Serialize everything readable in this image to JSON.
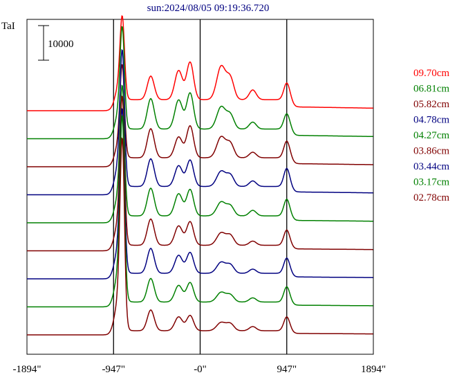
{
  "chart_data": {
    "type": "line",
    "title": "sun:2024/08/05 09:19:36.720",
    "ylabel": "TaI",
    "scale_bar_label": "10000",
    "xlim": [
      -1894,
      1894
    ],
    "x_ticks": [
      {
        "value": -1894,
        "label": "-1894\""
      },
      {
        "value": -947,
        "label": "-947\""
      },
      {
        "value": 0,
        "label": "-0\""
      },
      {
        "value": 947,
        "label": "947\""
      },
      {
        "value": 1894,
        "label": "1894\""
      }
    ],
    "vertical_markers": [
      -947,
      0,
      947
    ],
    "layout_note": "stacked traces with constant vertical offset",
    "series": [
      {
        "name": "09.70cm",
        "color": "#ff0000",
        "base": 16,
        "pk": {
          "main": 108,
          "a": 34,
          "b": 42,
          "c": 54,
          "d": 48,
          "e": 30,
          "f": 14,
          "g": 24
        }
      },
      {
        "name": "06.81cm",
        "color": "#008000",
        "base": 14,
        "pk": {
          "main": 132,
          "a": 44,
          "b": 42,
          "c": 52,
          "d": 32,
          "e": 20,
          "f": 10,
          "g": 22
        }
      },
      {
        "name": "05.82cm",
        "color": "#800000",
        "base": 13,
        "pk": {
          "main": 120,
          "a": 42,
          "b": 30,
          "c": 46,
          "d": 30,
          "e": 20,
          "f": 8,
          "g": 24
        }
      },
      {
        "name": "04.78cm",
        "color": "#000080",
        "base": 12,
        "pk": {
          "main": 176,
          "a": 40,
          "b": 30,
          "c": 38,
          "d": 22,
          "e": 16,
          "f": 8,
          "g": 26
        }
      },
      {
        "name": "04.27cm",
        "color": "#008000",
        "base": 10,
        "pk": {
          "main": 168,
          "a": 40,
          "b": 32,
          "c": 38,
          "d": 20,
          "e": 14,
          "f": 8,
          "g": 24
        }
      },
      {
        "name": "03.86cm",
        "color": "#800000",
        "base": 8,
        "pk": {
          "main": 192,
          "a": 38,
          "b": 28,
          "c": 34,
          "d": 18,
          "e": 14,
          "f": 6,
          "g": 22
        }
      },
      {
        "name": "03.44cm",
        "color": "#000080",
        "base": 8,
        "pk": {
          "main": 212,
          "a": 36,
          "b": 26,
          "c": 30,
          "d": 16,
          "e": 12,
          "f": 6,
          "g": 22
        }
      },
      {
        "name": "03.17cm",
        "color": "#008000",
        "base": 7,
        "pk": {
          "main": 240,
          "a": 34,
          "b": 24,
          "c": 28,
          "d": 14,
          "e": 10,
          "f": 6,
          "g": 22
        }
      },
      {
        "name": "02.78cm",
        "color": "#800000",
        "base": 6,
        "pk": {
          "main": 248,
          "a": 30,
          "b": 20,
          "c": 22,
          "d": 12,
          "e": 10,
          "f": 6,
          "g": 20
        }
      }
    ]
  }
}
